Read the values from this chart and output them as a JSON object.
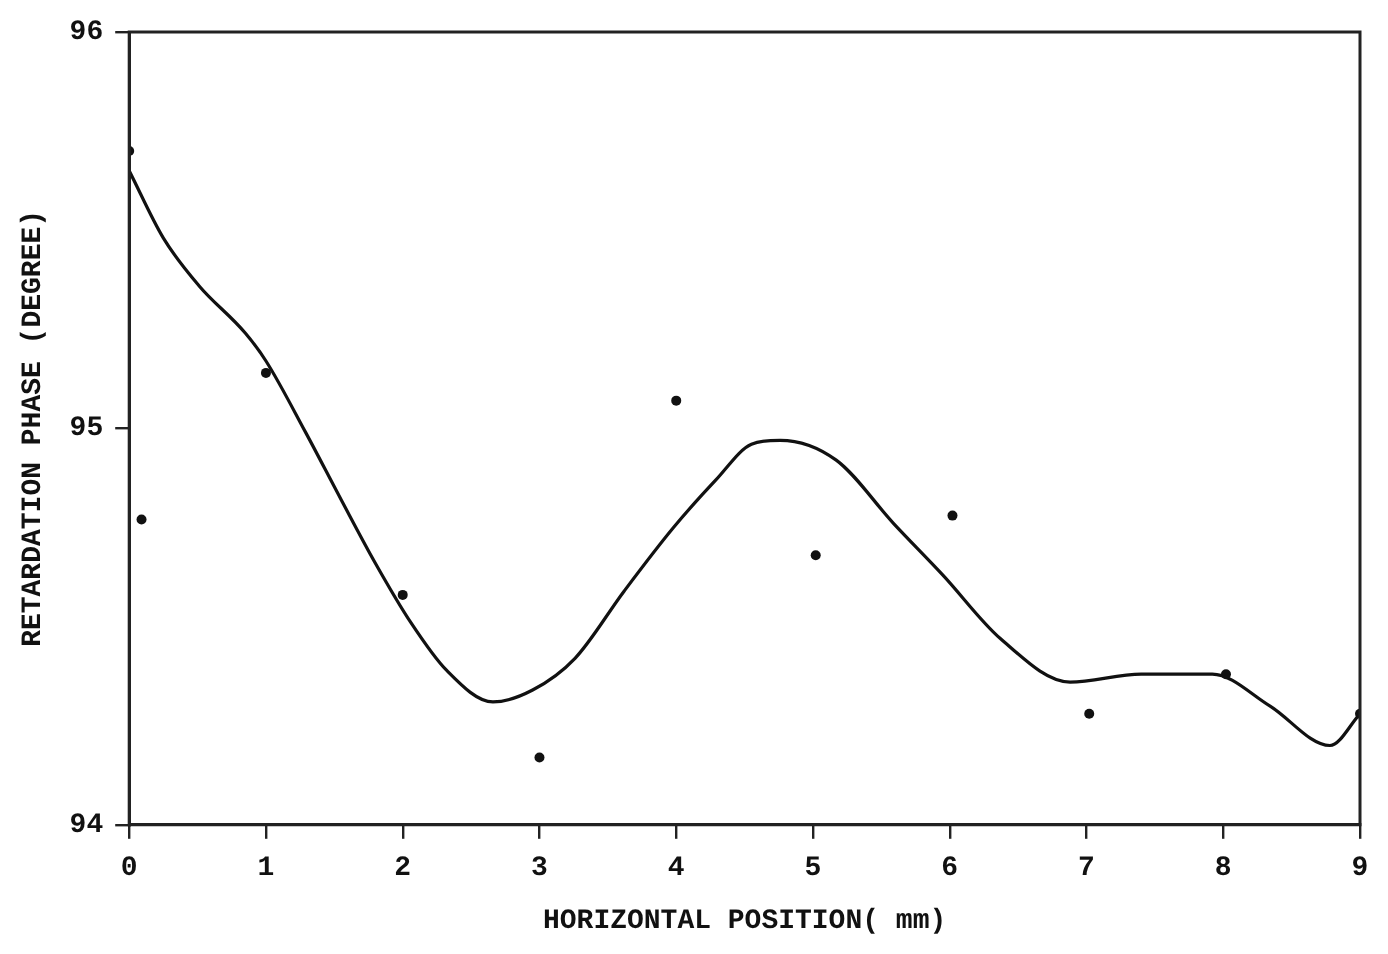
{
  "chart_data": {
    "type": "scatter",
    "xlabel": "HORIZONTAL POSITION( mm)",
    "ylabel": "RETARDATION PHASE (DEGREE)",
    "xlim": [
      0,
      9
    ],
    "xticks": [
      0,
      1,
      2,
      3,
      4,
      5,
      6,
      7,
      8,
      9
    ],
    "ylim": [
      94,
      96
    ],
    "yticks": [
      94,
      95,
      96
    ],
    "grid": false,
    "legend": false,
    "series": [
      {
        "color": "#111111",
        "marker": "circle",
        "x": [
          0,
          0.09,
          1,
          2,
          3,
          4,
          5.02,
          6.02,
          7.02,
          8.02,
          9
        ],
        "values": [
          95.7,
          94.77,
          95.14,
          94.58,
          94.17,
          95.07,
          94.68,
          94.78,
          94.28,
          94.38,
          94.28
        ]
      },
      {
        "type": "line",
        "color": "#111111",
        "marker": "none",
        "line_style": "solid",
        "x": [
          0,
          0.25,
          0.51,
          0.85,
          1,
          1.29,
          1.55,
          1.8,
          2.06,
          2.32,
          2.66,
          2.95,
          3.26,
          3.62,
          3.98,
          4.29,
          4.55,
          4.76,
          5.17,
          5.59,
          5.95,
          6.37,
          6.88,
          7.4,
          7.92,
          8.34,
          8.78,
          9
        ],
        "values": [
          95.65,
          95.48,
          95.36,
          95.24,
          95.17,
          94.99,
          94.82,
          94.66,
          94.51,
          94.39,
          94.31,
          94.34,
          94.42,
          94.59,
          94.75,
          94.87,
          94.96,
          94.97,
          94.92,
          94.76,
          94.63,
          94.47,
          94.36,
          94.38,
          94.38,
          94.3,
          94.2,
          94.28
        ]
      }
    ]
  }
}
